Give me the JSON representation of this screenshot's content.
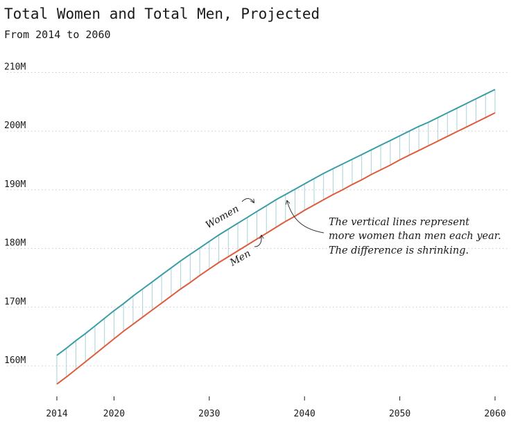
{
  "title": "Total Women and Total Men, Projected",
  "subtitle": "From 2014 to 2060",
  "colors": {
    "women": "#3a9da6",
    "men": "#e05a3c",
    "diff": "#a6d3d7",
    "grid": "#c8c8c8"
  },
  "chart_data": {
    "type": "line",
    "title": "Total Women and Total Men, Projected",
    "subtitle": "From 2014 to 2060",
    "xlabel": "",
    "ylabel": "",
    "xlim": [
      2014,
      2060
    ],
    "ylim": [
      155,
      210
    ],
    "grid": true,
    "x_ticks": [
      "2014",
      "2020",
      "2030",
      "2040",
      "2050",
      "2060"
    ],
    "y_ticks": [
      "160M",
      "170M",
      "180M",
      "190M",
      "200M",
      "210M"
    ],
    "x": [
      2014,
      2015,
      2016,
      2017,
      2018,
      2019,
      2020,
      2021,
      2022,
      2023,
      2024,
      2025,
      2026,
      2027,
      2028,
      2029,
      2030,
      2031,
      2032,
      2033,
      2034,
      2035,
      2036,
      2037,
      2038,
      2039,
      2040,
      2041,
      2042,
      2043,
      2044,
      2045,
      2046,
      2047,
      2048,
      2049,
      2050,
      2051,
      2052,
      2053,
      2054,
      2055,
      2056,
      2057,
      2058,
      2059,
      2060
    ],
    "series": [
      {
        "name": "Women",
        "values": [
          161.8,
          163.0,
          164.3,
          165.5,
          166.8,
          168.1,
          169.4,
          170.6,
          171.9,
          173.1,
          174.3,
          175.5,
          176.7,
          177.9,
          179.0,
          180.1,
          181.2,
          182.3,
          183.3,
          184.3,
          185.3,
          186.3,
          187.3,
          188.3,
          189.2,
          190.1,
          191.0,
          191.9,
          192.8,
          193.6,
          194.4,
          195.2,
          196.0,
          196.8,
          197.6,
          198.4,
          199.2,
          200.0,
          200.8,
          201.5,
          202.3,
          203.1,
          203.9,
          204.7,
          205.5,
          206.3,
          207.1
        ]
      },
      {
        "name": "Men",
        "values": [
          156.9,
          158.1,
          159.4,
          160.7,
          162.0,
          163.3,
          164.6,
          165.9,
          167.1,
          168.3,
          169.5,
          170.7,
          171.9,
          173.1,
          174.2,
          175.4,
          176.5,
          177.6,
          178.6,
          179.6,
          180.6,
          181.6,
          182.6,
          183.6,
          184.6,
          185.5,
          186.5,
          187.4,
          188.3,
          189.2,
          190.0,
          190.9,
          191.7,
          192.6,
          193.4,
          194.2,
          195.1,
          195.9,
          196.7,
          197.5,
          198.3,
          199.1,
          199.9,
          200.7,
          201.5,
          202.3,
          203.1
        ]
      }
    ],
    "annotations": [
      {
        "text": "Women"
      },
      {
        "text": "Men"
      },
      {
        "lines": [
          "The vertical lines represent",
          "more women than men each year.",
          "The difference is shrinking."
        ]
      }
    ]
  }
}
